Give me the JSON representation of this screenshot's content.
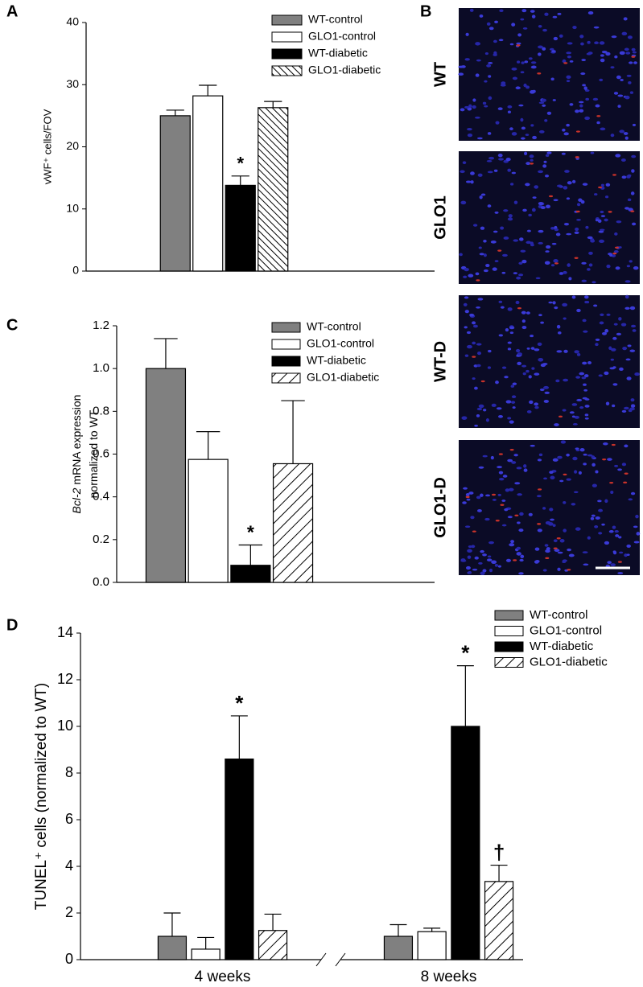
{
  "chart_data": [
    {
      "type": "bar",
      "panel": "A",
      "ylabel": "vWF⁺ cells/FOV",
      "categories": [
        null
      ],
      "ylim": [
        0,
        40
      ],
      "yticks": [
        0,
        10,
        20,
        30,
        40
      ],
      "legend": "upper right",
      "series": [
        {
          "name": "WT-control",
          "color": "#808080",
          "values": [
            25.0
          ],
          "errors": [
            0.9
          ]
        },
        {
          "name": "GLO1-control",
          "color": "#ffffff",
          "values": [
            28.2
          ],
          "errors": [
            1.7
          ]
        },
        {
          "name": "WT-diabetic",
          "color": "#000000",
          "values": [
            13.8
          ],
          "errors": [
            1.5
          ],
          "markers": [
            "*"
          ]
        },
        {
          "name": "GLO1-diabetic",
          "color": "#ffffff",
          "hatch": "backslash",
          "values": [
            26.3
          ],
          "errors": [
            1.0
          ]
        }
      ]
    },
    {
      "type": "bar",
      "panel": "C",
      "ylabel": [
        [
          "Bcl-2",
          "mRNA expression"
        ],
        [
          "normalized to WT"
        ]
      ],
      "categories": [
        null
      ],
      "ylim": [
        0,
        1.2
      ],
      "yticks": [
        {
          "value": 0,
          "label": "0.0"
        },
        0.2,
        0.4,
        0.6,
        0.8,
        {
          "value": 1,
          "label": "1.0"
        },
        1.2
      ],
      "legend": "upper right",
      "series": [
        {
          "name": "WT-control",
          "color": "#808080",
          "values": [
            1.0
          ],
          "errors": [
            0.14
          ]
        },
        {
          "name": "GLO1-control",
          "color": "#ffffff",
          "values": [
            0.575
          ],
          "errors": [
            0.13
          ]
        },
        {
          "name": "WT-diabetic",
          "color": "#000000",
          "values": [
            0.08
          ],
          "errors": [
            0.095
          ],
          "markers": [
            "*"
          ]
        },
        {
          "name": "GLO1-diabetic",
          "color": "#ffffff",
          "hatch": "slash",
          "values": [
            0.555
          ],
          "errors": [
            0.295
          ]
        }
      ]
    },
    {
      "type": "bar",
      "panel": "D",
      "ylabel": "TUNEL⁺ cells (normalized to WT)",
      "categories": [
        "4 weeks",
        "8 weeks"
      ],
      "ylim": [
        0,
        14
      ],
      "yticks": [
        0,
        2,
        4,
        6,
        8,
        10,
        12,
        14
      ],
      "legend": "upper right",
      "x_axis_break": true,
      "series": [
        {
          "name": "WT-control",
          "color": "#808080",
          "values": [
            1.0,
            1.0
          ],
          "errors": [
            1.0,
            0.5
          ]
        },
        {
          "name": "GLO1-control",
          "color": "#ffffff",
          "values": [
            0.45,
            1.2
          ],
          "errors": [
            0.5,
            0.15
          ]
        },
        {
          "name": "WT-diabetic",
          "color": "#000000",
          "values": [
            8.6,
            10.0
          ],
          "errors": [
            1.85,
            2.6
          ],
          "markers": [
            "*",
            "*"
          ]
        },
        {
          "name": "GLO1-diabetic",
          "color": "#ffffff",
          "hatch": "slash",
          "values": [
            1.25,
            3.35
          ],
          "errors": [
            0.7,
            0.7
          ],
          "markers": [
            null,
            "†"
          ]
        }
      ]
    }
  ],
  "micrographs": {
    "panel": "B",
    "labels": [
      "WT",
      "GLO1",
      "WT-D",
      "GLO1-D"
    ]
  }
}
